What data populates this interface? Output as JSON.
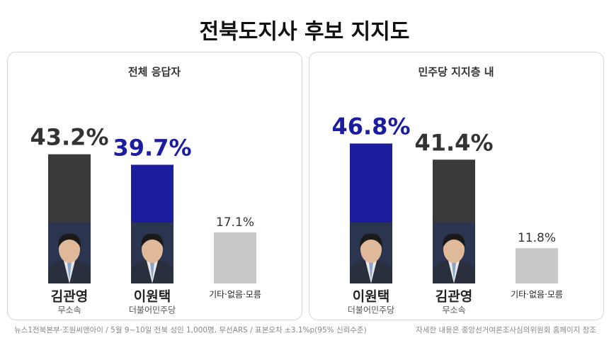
{
  "title": "전북도지사 후보 지지도",
  "chart_data": [
    {
      "type": "bar",
      "title": "전체 응답자",
      "categories": [
        "김관영",
        "이원택",
        "기타·없음·모름"
      ],
      "parties": [
        "무소속",
        "더불어민주당",
        null
      ],
      "values": [
        43.2,
        39.7,
        17.1
      ],
      "value_labels": [
        "43.2%",
        "39.7%",
        "17.1%"
      ],
      "colors": [
        "#3a3a3a",
        "#1c1c9e",
        "#c8c8c8"
      ]
    },
    {
      "type": "bar",
      "title": "민주당 지지층 내",
      "categories": [
        "이원택",
        "김관영",
        "기타·없음·모름"
      ],
      "parties": [
        "더불어민주당",
        "무소속",
        null
      ],
      "values": [
        46.8,
        41.4,
        11.8
      ],
      "value_labels": [
        "46.8%",
        "41.4%",
        "11.8%"
      ],
      "colors": [
        "#1c1c9e",
        "#3a3a3a",
        "#c8c8c8"
      ]
    }
  ],
  "source": "뉴스1전북본부·조원씨앤아이 / 5월 9~10일 전북 성인 1,000명, 무선ARS / 표본오차 ±3.1%p(95% 신뢰수준)",
  "note": "자세한 내용은 중앙선거여론조사심의위원회 홈페이지 참조"
}
